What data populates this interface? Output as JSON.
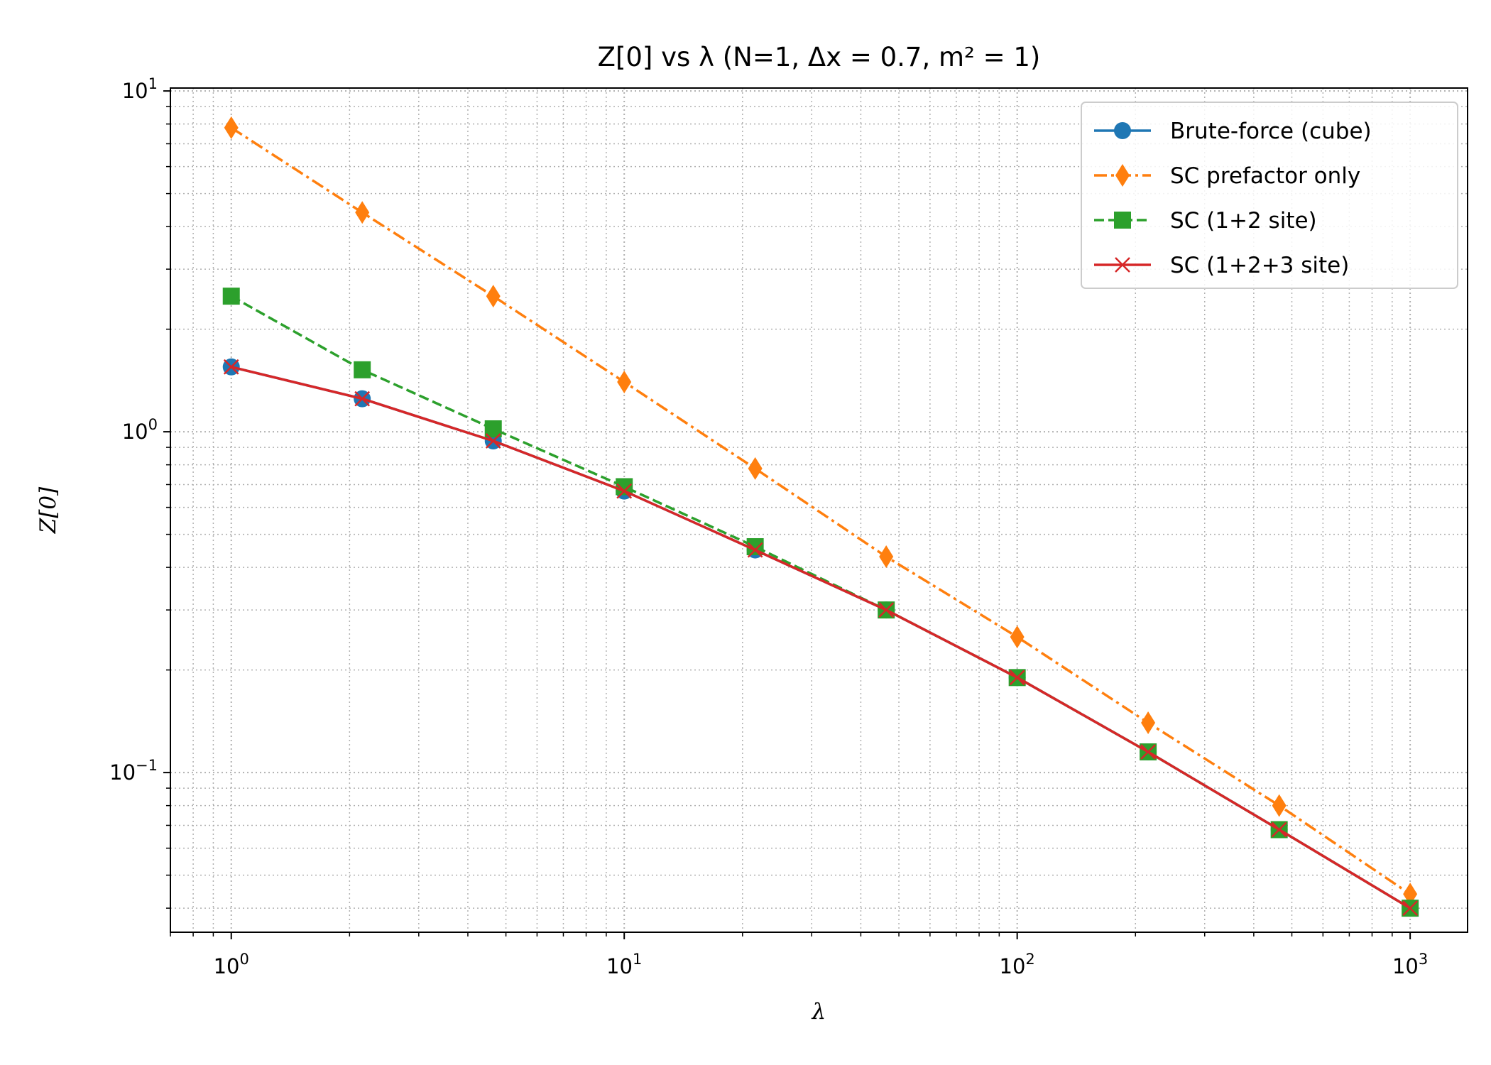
{
  "chart_data": {
    "type": "line",
    "title": "Z[0] vs λ (N=1, Δx = 0.7, m² = 1)",
    "xlabel": "λ",
    "ylabel": "Z[0]",
    "xscale": "log",
    "yscale": "log",
    "xlim": [
      0.7,
      1400
    ],
    "ylim": [
      0.034,
      10.2
    ],
    "grid": true,
    "legend_position": "top-right",
    "x_ticks": [
      {
        "value": 1,
        "label": "10^0"
      },
      {
        "value": 10,
        "label": "10^1"
      },
      {
        "value": 100,
        "label": "10^2"
      },
      {
        "value": 1000,
        "label": "10^3"
      }
    ],
    "y_ticks": [
      {
        "value": 0.1,
        "label": "10^-1"
      },
      {
        "value": 1,
        "label": "10^0"
      },
      {
        "value": 10,
        "label": "10^1"
      }
    ],
    "x": [
      1,
      2.154,
      4.642,
      10,
      21.54,
      46.42,
      100,
      215.4,
      464.2,
      1000
    ],
    "series": [
      {
        "name": "Brute-force (cube)",
        "color": "#1f77b4",
        "marker": "circle",
        "line": "solid",
        "values": [
          1.55,
          1.25,
          0.94,
          0.67,
          0.45,
          0.3,
          0.19,
          0.115,
          0.068,
          0.04
        ]
      },
      {
        "name": "SC prefactor only",
        "color": "#ff7f0e",
        "marker": "thin-diamond",
        "line": "dashdot",
        "values": [
          7.8,
          4.4,
          2.5,
          1.4,
          0.78,
          0.43,
          0.25,
          0.14,
          0.08,
          0.044
        ]
      },
      {
        "name": "SC (1+2 site)",
        "color": "#2ca02c",
        "marker": "square",
        "line": "dashed",
        "values": [
          2.5,
          1.52,
          1.02,
          0.69,
          0.46,
          0.3,
          0.19,
          0.115,
          0.068,
          0.04
        ]
      },
      {
        "name": "SC (1+2+3 site)",
        "color": "#d62728",
        "marker": "x",
        "line": "solid",
        "values": [
          1.55,
          1.25,
          0.94,
          0.67,
          0.45,
          0.3,
          0.19,
          0.115,
          0.068,
          0.04
        ]
      }
    ]
  }
}
